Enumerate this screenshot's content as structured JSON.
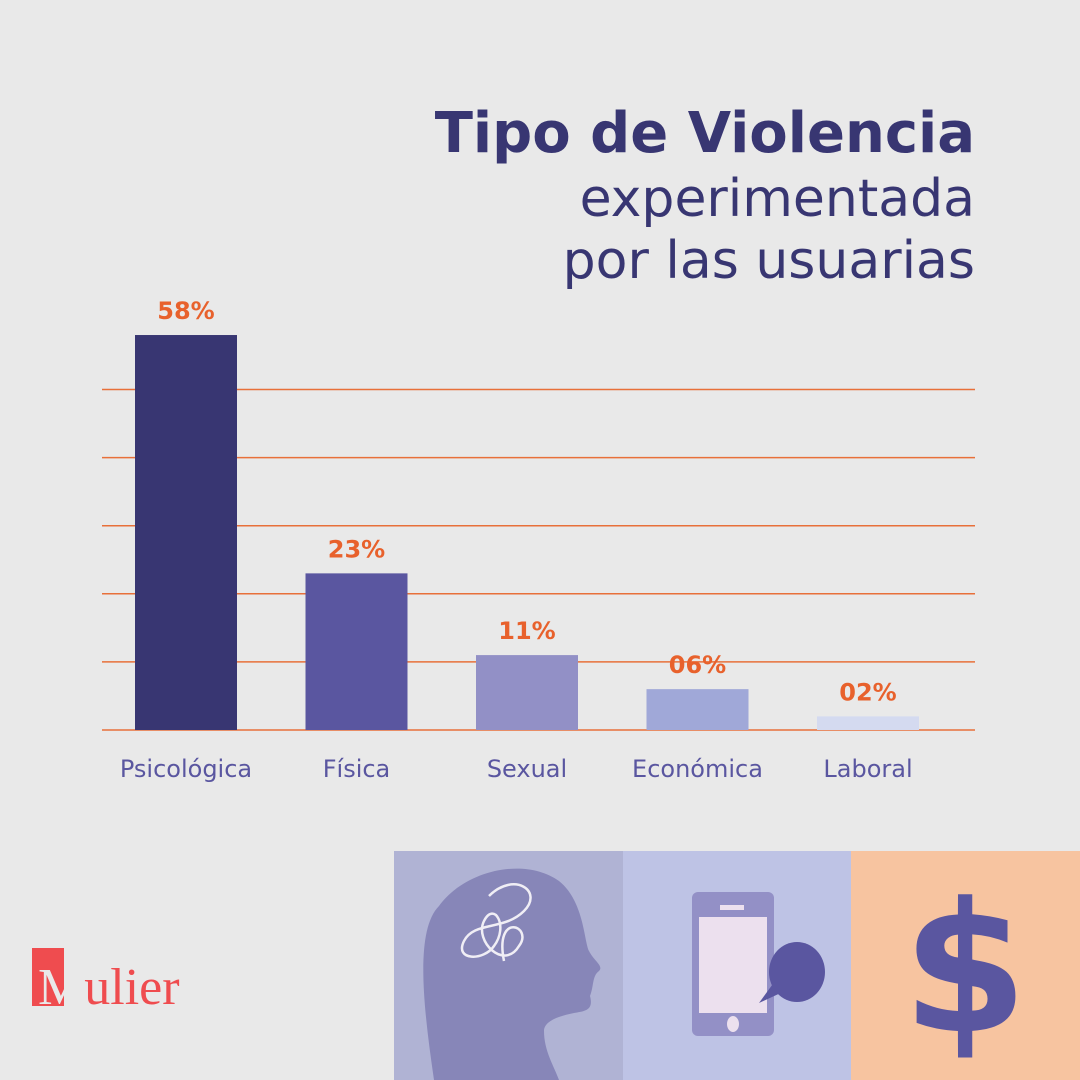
{
  "chart_data": {
    "type": "bar",
    "title": "Tipo de Violencia",
    "subtitle_lines": [
      "experimentada",
      "por las usuarias"
    ],
    "categories": [
      "Psicológica",
      "Física",
      "Sexual",
      "Económica",
      "Laboral"
    ],
    "values": [
      58,
      23,
      11,
      6,
      2
    ],
    "value_labels": [
      "58%",
      "23%",
      "11%",
      "06%",
      "02%"
    ],
    "bar_colors": [
      "#383672",
      "#5a56a0",
      "#9290c6",
      "#a0a8d8",
      "#d4daf0"
    ],
    "ylim": [
      0,
      60
    ],
    "gridlines": [
      0,
      10,
      20,
      30,
      40,
      50
    ],
    "grid_color": "#e8703a",
    "label_color": "#e8612c",
    "xlabel": "",
    "ylabel": ""
  },
  "brand": {
    "logo": "Mulier"
  },
  "icons": [
    "head-scribble-icon",
    "phone-message-icon",
    "dollar-icon"
  ]
}
